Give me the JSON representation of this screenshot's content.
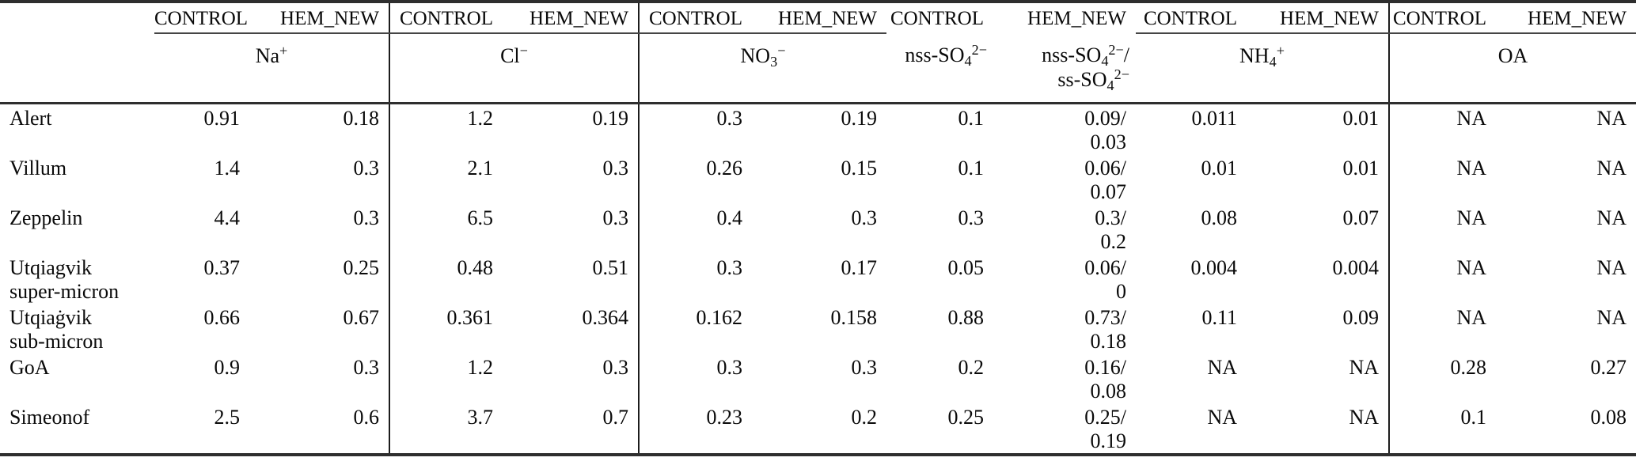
{
  "table": {
    "pair_labels": [
      "CONTROL",
      "HEM_NEW"
    ],
    "groups": [
      {
        "key": "na",
        "underline": true,
        "divider_left": false,
        "label_lines": [
          [
            {
              "text": "Na"
            },
            {
              "text": "+",
              "script": "sup"
            }
          ]
        ]
      },
      {
        "key": "cl",
        "underline": true,
        "divider_left": true,
        "label_lines": [
          [
            {
              "text": "Cl"
            },
            {
              "text": "−",
              "script": "sup"
            }
          ]
        ]
      },
      {
        "key": "no3",
        "underline": true,
        "divider_left": true,
        "label_lines": [
          [
            {
              "text": "NO"
            },
            {
              "text": "3",
              "script": "sub"
            },
            {
              "text": "−",
              "script": "sup"
            }
          ]
        ]
      },
      {
        "key": "so4",
        "underline": false,
        "divider_left": false,
        "control_label_lines": [
          [
            {
              "text": "nss-SO"
            },
            {
              "text": "4",
              "script": "sub"
            },
            {
              "text": "2−",
              "script": "sup"
            }
          ]
        ],
        "hemnew_label_lines": [
          [
            {
              "text": "nss-SO"
            },
            {
              "text": "4",
              "script": "sub"
            },
            {
              "text": "2−",
              "script": "sup"
            },
            {
              "text": "/"
            }
          ],
          [
            {
              "text": "ss-SO"
            },
            {
              "text": "4",
              "script": "sub"
            },
            {
              "text": "2−",
              "script": "sup"
            }
          ]
        ]
      },
      {
        "key": "nh4",
        "underline": true,
        "divider_left": false,
        "label_lines": [
          [
            {
              "text": "NH"
            },
            {
              "text": "4",
              "script": "sub"
            },
            {
              "text": "+",
              "script": "sup"
            }
          ]
        ]
      },
      {
        "key": "oa",
        "underline": true,
        "divider_left": true,
        "label_lines": [
          [
            {
              "text": "OA"
            }
          ]
        ]
      }
    ],
    "rows": [
      {
        "station_lines": [
          "Alert"
        ],
        "cells": {
          "na": [
            "0.91",
            "0.18"
          ],
          "cl": [
            "1.2",
            "0.19"
          ],
          "no3": [
            "0.3",
            "0.19"
          ],
          "so4": [
            "0.1",
            [
              "0.09/",
              "0.03"
            ]
          ],
          "nh4": [
            "0.011",
            "0.01"
          ],
          "oa": [
            "NA",
            "NA"
          ]
        }
      },
      {
        "station_lines": [
          "Villum"
        ],
        "cells": {
          "na": [
            "1.4",
            "0.3"
          ],
          "cl": [
            "2.1",
            "0.3"
          ],
          "no3": [
            "0.26",
            "0.15"
          ],
          "so4": [
            "0.1",
            [
              "0.06/",
              "0.07"
            ]
          ],
          "nh4": [
            "0.01",
            "0.01"
          ],
          "oa": [
            "NA",
            "NA"
          ]
        }
      },
      {
        "station_lines": [
          "Zeppelin"
        ],
        "cells": {
          "na": [
            "4.4",
            "0.3"
          ],
          "cl": [
            "6.5",
            "0.3"
          ],
          "no3": [
            "0.4",
            "0.3"
          ],
          "so4": [
            "0.3",
            [
              "0.3/",
              "0.2"
            ]
          ],
          "nh4": [
            "0.08",
            "0.07"
          ],
          "oa": [
            "NA",
            "NA"
          ]
        }
      },
      {
        "station_lines": [
          "Utqiagvik",
          "super-micron"
        ],
        "cells": {
          "na": [
            "0.37",
            "0.25"
          ],
          "cl": [
            "0.48",
            "0.51"
          ],
          "no3": [
            "0.3",
            "0.17"
          ],
          "so4": [
            "0.05",
            [
              "0.06/",
              "0"
            ]
          ],
          "nh4": [
            "0.004",
            "0.004"
          ],
          "oa": [
            "NA",
            "NA"
          ]
        }
      },
      {
        "station_lines": [
          "Utqiaġvik",
          "sub-micron"
        ],
        "cells": {
          "na": [
            "0.66",
            "0.67"
          ],
          "cl": [
            "0.361",
            "0.364"
          ],
          "no3": [
            "0.162",
            "0.158"
          ],
          "so4": [
            "0.88",
            [
              "0.73/",
              "0.18"
            ]
          ],
          "nh4": [
            "0.11",
            "0.09"
          ],
          "oa": [
            "NA",
            "NA"
          ]
        }
      },
      {
        "station_lines": [
          "GoA"
        ],
        "cells": {
          "na": [
            "0.9",
            "0.3"
          ],
          "cl": [
            "1.2",
            "0.3"
          ],
          "no3": [
            "0.3",
            "0.3"
          ],
          "so4": [
            "0.2",
            [
              "0.16/",
              "0.08"
            ]
          ],
          "nh4": [
            "NA",
            "NA"
          ],
          "oa": [
            "0.28",
            "0.27"
          ]
        }
      },
      {
        "station_lines": [
          "Simeonof"
        ],
        "cells": {
          "na": [
            "2.5",
            "0.6"
          ],
          "cl": [
            "3.7",
            "0.7"
          ],
          "no3": [
            "0.23",
            "0.2"
          ],
          "so4": [
            "0.25",
            [
              "0.25/",
              "0.19"
            ]
          ],
          "nh4": [
            "NA",
            "NA"
          ],
          "oa": [
            "0.1",
            "0.08"
          ]
        }
      }
    ]
  }
}
